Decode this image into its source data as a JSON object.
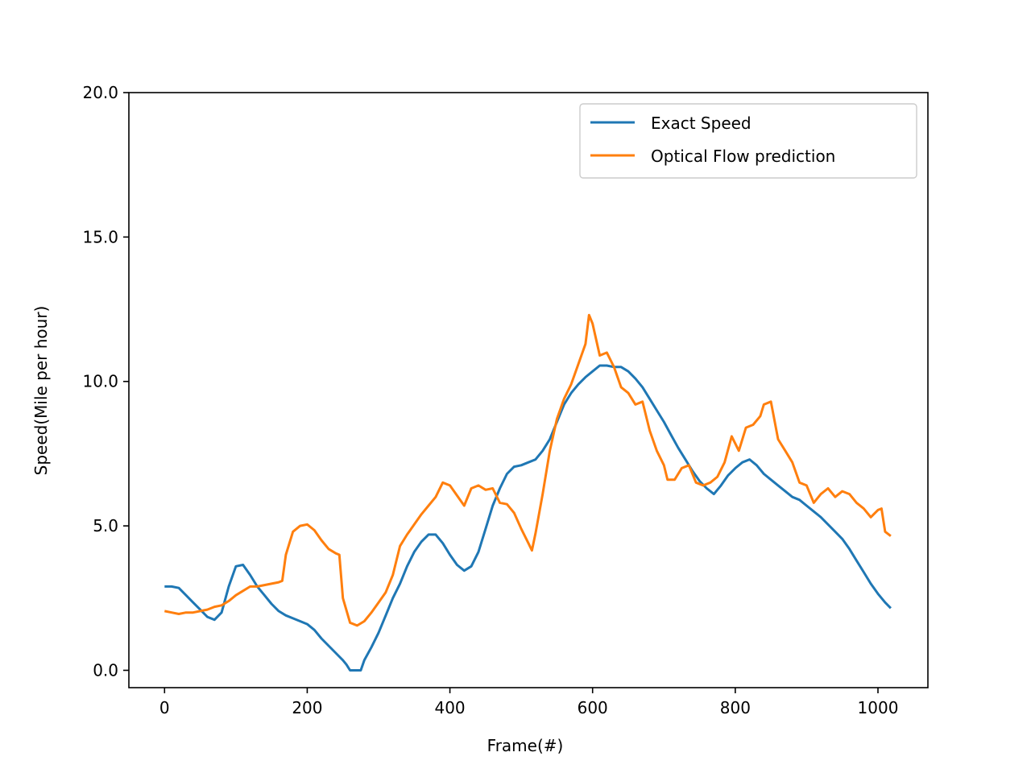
{
  "chart_data": {
    "type": "line",
    "title": "",
    "xlabel": "Frame(#)",
    "ylabel": "Speed(Mile per hour)",
    "xlim": [
      -50,
      1070
    ],
    "ylim": [
      -0.6,
      20.0
    ],
    "xticks": [
      0,
      200,
      400,
      600,
      800,
      1000
    ],
    "xtick_labels": [
      "0",
      "200",
      "400",
      "600",
      "800",
      "1000"
    ],
    "yticks": [
      0.0,
      5.0,
      10.0,
      15.0,
      20.0
    ],
    "ytick_labels": [
      "0.0",
      "5.0",
      "10.0",
      "15.0",
      "20.0"
    ],
    "grid": false,
    "legend_position": "top-right",
    "series": [
      {
        "name": "Exact Speed",
        "color": "#1f77b4",
        "points": [
          [
            0,
            2.9
          ],
          [
            10,
            2.9
          ],
          [
            20,
            2.85
          ],
          [
            30,
            2.6
          ],
          [
            40,
            2.35
          ],
          [
            50,
            2.1
          ],
          [
            60,
            1.85
          ],
          [
            70,
            1.75
          ],
          [
            80,
            2.0
          ],
          [
            90,
            2.9
          ],
          [
            100,
            3.6
          ],
          [
            110,
            3.65
          ],
          [
            120,
            3.3
          ],
          [
            130,
            2.9
          ],
          [
            140,
            2.6
          ],
          [
            150,
            2.3
          ],
          [
            160,
            2.05
          ],
          [
            170,
            1.9
          ],
          [
            180,
            1.8
          ],
          [
            190,
            1.7
          ],
          [
            200,
            1.6
          ],
          [
            210,
            1.4
          ],
          [
            220,
            1.1
          ],
          [
            230,
            0.85
          ],
          [
            240,
            0.6
          ],
          [
            250,
            0.35
          ],
          [
            255,
            0.2
          ],
          [
            260,
            0.0
          ],
          [
            275,
            0.0
          ],
          [
            280,
            0.35
          ],
          [
            290,
            0.8
          ],
          [
            300,
            1.3
          ],
          [
            310,
            1.9
          ],
          [
            320,
            2.5
          ],
          [
            330,
            3.0
          ],
          [
            340,
            3.6
          ],
          [
            350,
            4.1
          ],
          [
            360,
            4.45
          ],
          [
            370,
            4.7
          ],
          [
            380,
            4.7
          ],
          [
            390,
            4.4
          ],
          [
            400,
            4.0
          ],
          [
            410,
            3.65
          ],
          [
            420,
            3.45
          ],
          [
            430,
            3.6
          ],
          [
            440,
            4.1
          ],
          [
            450,
            4.9
          ],
          [
            460,
            5.7
          ],
          [
            470,
            6.3
          ],
          [
            480,
            6.8
          ],
          [
            490,
            7.05
          ],
          [
            500,
            7.1
          ],
          [
            510,
            7.2
          ],
          [
            520,
            7.3
          ],
          [
            530,
            7.6
          ],
          [
            540,
            8.0
          ],
          [
            550,
            8.6
          ],
          [
            560,
            9.2
          ],
          [
            570,
            9.6
          ],
          [
            580,
            9.9
          ],
          [
            590,
            10.15
          ],
          [
            600,
            10.35
          ],
          [
            610,
            10.55
          ],
          [
            620,
            10.55
          ],
          [
            630,
            10.5
          ],
          [
            640,
            10.5
          ],
          [
            650,
            10.35
          ],
          [
            660,
            10.1
          ],
          [
            670,
            9.8
          ],
          [
            680,
            9.4
          ],
          [
            690,
            9.0
          ],
          [
            700,
            8.6
          ],
          [
            710,
            8.15
          ],
          [
            720,
            7.7
          ],
          [
            730,
            7.3
          ],
          [
            740,
            6.9
          ],
          [
            750,
            6.55
          ],
          [
            760,
            6.3
          ],
          [
            770,
            6.1
          ],
          [
            780,
            6.4
          ],
          [
            790,
            6.75
          ],
          [
            800,
            7.0
          ],
          [
            810,
            7.2
          ],
          [
            820,
            7.3
          ],
          [
            830,
            7.1
          ],
          [
            840,
            6.8
          ],
          [
            850,
            6.6
          ],
          [
            860,
            6.4
          ],
          [
            870,
            6.2
          ],
          [
            880,
            6.0
          ],
          [
            890,
            5.9
          ],
          [
            900,
            5.7
          ],
          [
            910,
            5.5
          ],
          [
            920,
            5.3
          ],
          [
            930,
            5.05
          ],
          [
            940,
            4.8
          ],
          [
            950,
            4.55
          ],
          [
            960,
            4.2
          ],
          [
            970,
            3.8
          ],
          [
            980,
            3.4
          ],
          [
            990,
            3.0
          ],
          [
            1000,
            2.65
          ],
          [
            1010,
            2.35
          ],
          [
            1018,
            2.15
          ]
        ]
      },
      {
        "name": "Optical Flow prediction",
        "color": "#ff7f0e",
        "points": [
          [
            0,
            2.05
          ],
          [
            10,
            2.0
          ],
          [
            20,
            1.95
          ],
          [
            30,
            2.0
          ],
          [
            40,
            2.0
          ],
          [
            50,
            2.05
          ],
          [
            60,
            2.1
          ],
          [
            70,
            2.2
          ],
          [
            80,
            2.25
          ],
          [
            90,
            2.4
          ],
          [
            100,
            2.6
          ],
          [
            110,
            2.75
          ],
          [
            120,
            2.9
          ],
          [
            130,
            2.9
          ],
          [
            140,
            2.95
          ],
          [
            150,
            3.0
          ],
          [
            160,
            3.05
          ],
          [
            165,
            3.1
          ],
          [
            170,
            4.0
          ],
          [
            180,
            4.8
          ],
          [
            190,
            5.0
          ],
          [
            200,
            5.05
          ],
          [
            210,
            4.85
          ],
          [
            220,
            4.5
          ],
          [
            230,
            4.2
          ],
          [
            240,
            4.05
          ],
          [
            245,
            4.0
          ],
          [
            250,
            2.5
          ],
          [
            260,
            1.65
          ],
          [
            270,
            1.55
          ],
          [
            280,
            1.7
          ],
          [
            290,
            2.0
          ],
          [
            300,
            2.35
          ],
          [
            310,
            2.7
          ],
          [
            320,
            3.3
          ],
          [
            330,
            4.3
          ],
          [
            340,
            4.7
          ],
          [
            350,
            5.05
          ],
          [
            360,
            5.4
          ],
          [
            370,
            5.7
          ],
          [
            380,
            6.0
          ],
          [
            390,
            6.5
          ],
          [
            400,
            6.4
          ],
          [
            410,
            6.05
          ],
          [
            420,
            5.7
          ],
          [
            430,
            6.3
          ],
          [
            440,
            6.4
          ],
          [
            450,
            6.25
          ],
          [
            460,
            6.3
          ],
          [
            470,
            5.8
          ],
          [
            480,
            5.75
          ],
          [
            490,
            5.45
          ],
          [
            500,
            4.9
          ],
          [
            510,
            4.4
          ],
          [
            515,
            4.15
          ],
          [
            520,
            4.75
          ],
          [
            530,
            6.1
          ],
          [
            540,
            7.6
          ],
          [
            550,
            8.7
          ],
          [
            560,
            9.4
          ],
          [
            570,
            9.9
          ],
          [
            580,
            10.6
          ],
          [
            590,
            11.3
          ],
          [
            595,
            12.3
          ],
          [
            600,
            12.0
          ],
          [
            610,
            10.9
          ],
          [
            620,
            11.0
          ],
          [
            630,
            10.5
          ],
          [
            640,
            9.8
          ],
          [
            650,
            9.6
          ],
          [
            660,
            9.2
          ],
          [
            670,
            9.3
          ],
          [
            680,
            8.3
          ],
          [
            690,
            7.6
          ],
          [
            700,
            7.1
          ],
          [
            705,
            6.6
          ],
          [
            715,
            6.6
          ],
          [
            725,
            7.0
          ],
          [
            735,
            7.1
          ],
          [
            745,
            6.5
          ],
          [
            755,
            6.4
          ],
          [
            765,
            6.5
          ],
          [
            775,
            6.7
          ],
          [
            785,
            7.2
          ],
          [
            795,
            8.1
          ],
          [
            805,
            7.6
          ],
          [
            815,
            8.4
          ],
          [
            825,
            8.5
          ],
          [
            835,
            8.8
          ],
          [
            840,
            9.2
          ],
          [
            850,
            9.3
          ],
          [
            860,
            8.0
          ],
          [
            870,
            7.6
          ],
          [
            880,
            7.2
          ],
          [
            890,
            6.5
          ],
          [
            900,
            6.4
          ],
          [
            910,
            5.8
          ],
          [
            920,
            6.1
          ],
          [
            930,
            6.3
          ],
          [
            940,
            6.0
          ],
          [
            950,
            6.2
          ],
          [
            960,
            6.1
          ],
          [
            970,
            5.8
          ],
          [
            980,
            5.6
          ],
          [
            990,
            5.3
          ],
          [
            1000,
            5.55
          ],
          [
            1005,
            5.6
          ],
          [
            1010,
            4.8
          ],
          [
            1018,
            4.65
          ]
        ]
      }
    ]
  }
}
